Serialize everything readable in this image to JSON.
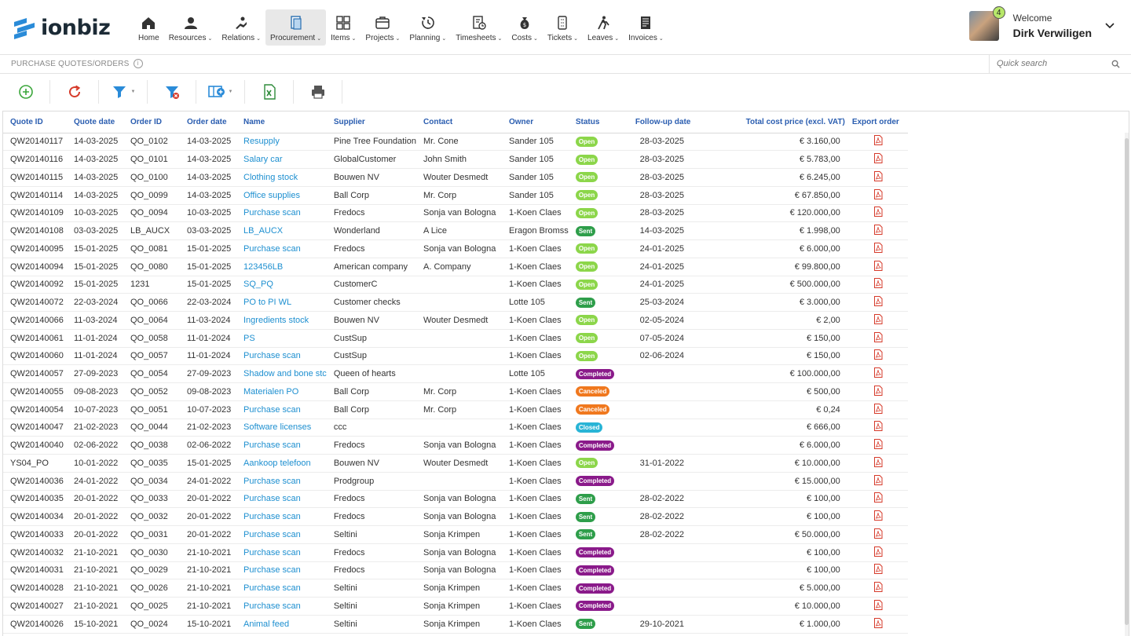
{
  "app": {
    "brand": "ionbiz"
  },
  "nav": [
    {
      "label": "Home",
      "icon": "home-icon",
      "caret": false
    },
    {
      "label": "Resources",
      "icon": "resources-icon",
      "caret": true
    },
    {
      "label": "Relations",
      "icon": "relations-icon",
      "caret": true
    },
    {
      "label": "Procurement",
      "icon": "procurement-icon",
      "caret": true,
      "active": true
    },
    {
      "label": "Items",
      "icon": "items-icon",
      "caret": true
    },
    {
      "label": "Projects",
      "icon": "projects-icon",
      "caret": true
    },
    {
      "label": "Planning",
      "icon": "planning-icon",
      "caret": true
    },
    {
      "label": "Timesheets",
      "icon": "timesheets-icon",
      "caret": true
    },
    {
      "label": "Costs",
      "icon": "costs-icon",
      "caret": true
    },
    {
      "label": "Tickets",
      "icon": "tickets-icon",
      "caret": true
    },
    {
      "label": "Leaves",
      "icon": "leaves-icon",
      "caret": true
    },
    {
      "label": "Invoices",
      "icon": "invoices-icon",
      "caret": true
    }
  ],
  "user": {
    "welcome": "Welcome",
    "name": "Dirk Verwiligen",
    "notifications": "4"
  },
  "page": {
    "title": "PURCHASE QUOTES/ORDERS",
    "search_placeholder": "Quick search"
  },
  "colors": {
    "open": "#8cd64a",
    "sent": "#2e9e4a",
    "completed": "#8a1a8a",
    "canceled": "#f0781e",
    "closed": "#28b4d6",
    "link": "#1d8fd0",
    "header": "#2a5db0"
  },
  "columns": [
    "Quote ID",
    "Quote date",
    "Order ID",
    "Order date",
    "Name",
    "Supplier",
    "Contact",
    "Owner",
    "Status",
    "Follow-up date",
    "Total cost price (excl. VAT)",
    "Export order"
  ],
  "rows": [
    [
      "QW20140117",
      "14-03-2025",
      "QO_0102",
      "14-03-2025",
      "Resupply",
      "Pine Tree Foundation",
      "Mr. Cone",
      "Sander 105",
      "Open",
      "28-03-2025",
      "€ 3.160,00"
    ],
    [
      "QW20140116",
      "14-03-2025",
      "QO_0101",
      "14-03-2025",
      "Salary car",
      "GlobalCustomer",
      "John Smith",
      "Sander 105",
      "Open",
      "28-03-2025",
      "€ 5.783,00"
    ],
    [
      "QW20140115",
      "14-03-2025",
      "QO_0100",
      "14-03-2025",
      "Clothing stock",
      "Bouwen NV",
      "Wouter Desmedt",
      "Sander 105",
      "Open",
      "28-03-2025",
      "€ 6.245,00"
    ],
    [
      "QW20140114",
      "14-03-2025",
      "QO_0099",
      "14-03-2025",
      "Office supplies",
      "Ball Corp",
      "Mr. Corp",
      "Sander 105",
      "Open",
      "28-03-2025",
      "€ 67.850,00"
    ],
    [
      "QW20140109",
      "10-03-2025",
      "QO_0094",
      "10-03-2025",
      "Purchase scan",
      "Fredocs",
      "Sonja van Bologna",
      "1-Koen Claes",
      "Open",
      "28-03-2025",
      "€ 120.000,00"
    ],
    [
      "QW20140108",
      "03-03-2025",
      "LB_AUCX",
      "03-03-2025",
      "LB_AUCX",
      "Wonderland",
      "A Lice",
      "Eragon Bromss",
      "Sent",
      "14-03-2025",
      "€ 1.998,00"
    ],
    [
      "QW20140095",
      "15-01-2025",
      "QO_0081",
      "15-01-2025",
      "Purchase scan",
      "Fredocs",
      "Sonja van Bologna",
      "1-Koen Claes",
      "Open",
      "24-01-2025",
      "€ 6.000,00"
    ],
    [
      "QW20140094",
      "15-01-2025",
      "QO_0080",
      "15-01-2025",
      "123456LB",
      "American company",
      "A. Company",
      "1-Koen Claes",
      "Open",
      "24-01-2025",
      "€ 99.800,00"
    ],
    [
      "QW20140092",
      "15-01-2025",
      "1231",
      "15-01-2025",
      "SQ_PQ",
      "CustomerC",
      "",
      "1-Koen Claes",
      "Open",
      "24-01-2025",
      "€ 500.000,00"
    ],
    [
      "QW20140072",
      "22-03-2024",
      "QO_0066",
      "22-03-2024",
      "PO to PI WL",
      "Customer checks",
      "",
      "Lotte 105",
      "Sent",
      "25-03-2024",
      "€ 3.000,00"
    ],
    [
      "QW20140066",
      "11-03-2024",
      "QO_0064",
      "11-03-2024",
      "Ingredients stock",
      "Bouwen NV",
      "Wouter Desmedt",
      "1-Koen Claes",
      "Open",
      "02-05-2024",
      "€ 2,00"
    ],
    [
      "QW20140061",
      "11-01-2024",
      "QO_0058",
      "11-01-2024",
      "PS",
      "CustSup",
      "",
      "1-Koen Claes",
      "Open",
      "07-05-2024",
      "€ 150,00"
    ],
    [
      "QW20140060",
      "11-01-2024",
      "QO_0057",
      "11-01-2024",
      "Purchase scan",
      "CustSup",
      "",
      "1-Koen Claes",
      "Open",
      "02-06-2024",
      "€ 150,00"
    ],
    [
      "QW20140057",
      "27-09-2023",
      "QO_0054",
      "27-09-2023",
      "Shadow and bone stc",
      "Queen of hearts",
      "",
      "Lotte 105",
      "Completed",
      "",
      "€ 100.000,00"
    ],
    [
      "QW20140055",
      "09-08-2023",
      "QO_0052",
      "09-08-2023",
      "Materialen PO",
      "Ball Corp",
      "Mr. Corp",
      "1-Koen Claes",
      "Canceled",
      "",
      "€ 500,00"
    ],
    [
      "QW20140054",
      "10-07-2023",
      "QO_0051",
      "10-07-2023",
      "Purchase scan",
      "Ball Corp",
      "Mr. Corp",
      "1-Koen Claes",
      "Canceled",
      "",
      "€ 0,24"
    ],
    [
      "QW20140047",
      "21-02-2023",
      "QO_0044",
      "21-02-2023",
      "Software licenses",
      "ccc",
      "",
      "1-Koen Claes",
      "Closed",
      "",
      "€ 666,00"
    ],
    [
      "QW20140040",
      "02-06-2022",
      "QO_0038",
      "02-06-2022",
      "Purchase scan",
      "Fredocs",
      "Sonja van Bologna",
      "1-Koen Claes",
      "Completed",
      "",
      "€ 6.000,00"
    ],
    [
      "YS04_PO",
      "10-01-2022",
      "QO_0035",
      "15-01-2025",
      "Aankoop telefoon",
      "Bouwen NV",
      "Wouter Desmedt",
      "1-Koen Claes",
      "Open",
      "31-01-2022",
      "€ 10.000,00"
    ],
    [
      "QW20140036",
      "24-01-2022",
      "QO_0034",
      "24-01-2022",
      "Purchase scan",
      "Prodgroup",
      "",
      "1-Koen Claes",
      "Completed",
      "",
      "€ 15.000,00"
    ],
    [
      "QW20140035",
      "20-01-2022",
      "QO_0033",
      "20-01-2022",
      "Purchase scan",
      "Fredocs",
      "Sonja van Bologna",
      "1-Koen Claes",
      "Sent",
      "28-02-2022",
      "€ 100,00"
    ],
    [
      "QW20140034",
      "20-01-2022",
      "QO_0032",
      "20-01-2022",
      "Purchase scan",
      "Fredocs",
      "Sonja van Bologna",
      "1-Koen Claes",
      "Sent",
      "28-02-2022",
      "€ 100,00"
    ],
    [
      "QW20140033",
      "20-01-2022",
      "QO_0031",
      "20-01-2022",
      "Purchase scan",
      "Seltini",
      "Sonja Krimpen",
      "1-Koen Claes",
      "Sent",
      "28-02-2022",
      "€ 50.000,00"
    ],
    [
      "QW20140032",
      "21-10-2021",
      "QO_0030",
      "21-10-2021",
      "Purchase scan",
      "Fredocs",
      "Sonja van Bologna",
      "1-Koen Claes",
      "Completed",
      "",
      "€ 100,00"
    ],
    [
      "QW20140031",
      "21-10-2021",
      "QO_0029",
      "21-10-2021",
      "Purchase scan",
      "Fredocs",
      "Sonja van Bologna",
      "1-Koen Claes",
      "Completed",
      "",
      "€ 100,00"
    ],
    [
      "QW20140028",
      "21-10-2021",
      "QO_0026",
      "21-10-2021",
      "Purchase scan",
      "Seltini",
      "Sonja Krimpen",
      "1-Koen Claes",
      "Completed",
      "",
      "€ 5.000,00"
    ],
    [
      "QW20140027",
      "21-10-2021",
      "QO_0025",
      "21-10-2021",
      "Purchase scan",
      "Seltini",
      "Sonja Krimpen",
      "1-Koen Claes",
      "Completed",
      "",
      "€ 10.000,00"
    ],
    [
      "QW20140026",
      "15-10-2021",
      "QO_0024",
      "15-10-2021",
      "Animal feed",
      "Seltini",
      "Sonja Krimpen",
      "1-Koen Claes",
      "Sent",
      "29-10-2021",
      "€ 1.000,00"
    ]
  ]
}
